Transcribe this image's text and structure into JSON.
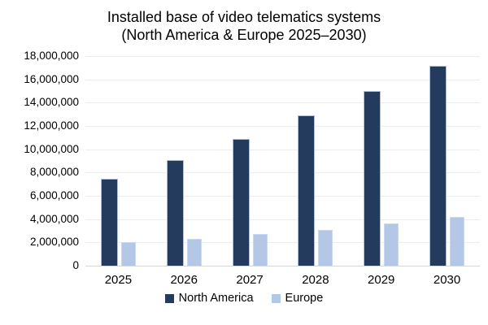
{
  "title": {
    "line1": "Installed base of video telematics systems",
    "line2": "(North America & Europe 2025–2030)"
  },
  "colors": {
    "north_america": "#243B5E",
    "europe": "#B4C7E7",
    "gridline": "#EDEDED",
    "axis_line": "#D6D6D6",
    "text": "#000000",
    "background": "#FFFFFF"
  },
  "chart_data": {
    "type": "bar",
    "title": "Installed base of video telematics systems (North America & Europe 2025–2030)",
    "categories": [
      "2025",
      "2026",
      "2027",
      "2028",
      "2029",
      "2030"
    ],
    "series": [
      {
        "name": "North America",
        "color": "#243B5E",
        "values": [
          7500000,
          9100000,
          10900000,
          12900000,
          15000000,
          17200000
        ]
      },
      {
        "name": "Europe",
        "color": "#B4C7E7",
        "values": [
          2000000,
          2300000,
          2700000,
          3100000,
          3600000,
          4200000
        ]
      }
    ],
    "xlabel": "",
    "ylabel": "",
    "ylim": [
      0,
      18000000
    ],
    "ytick_step": 2000000,
    "ytick_labels": [
      "0",
      "2,000,000",
      "4,000,000",
      "6,000,000",
      "8,000,000",
      "10,000,000",
      "12,000,000",
      "14,000,000",
      "16,000,000",
      "18,000,000"
    ],
    "grid": true,
    "legend_position": "bottom"
  }
}
